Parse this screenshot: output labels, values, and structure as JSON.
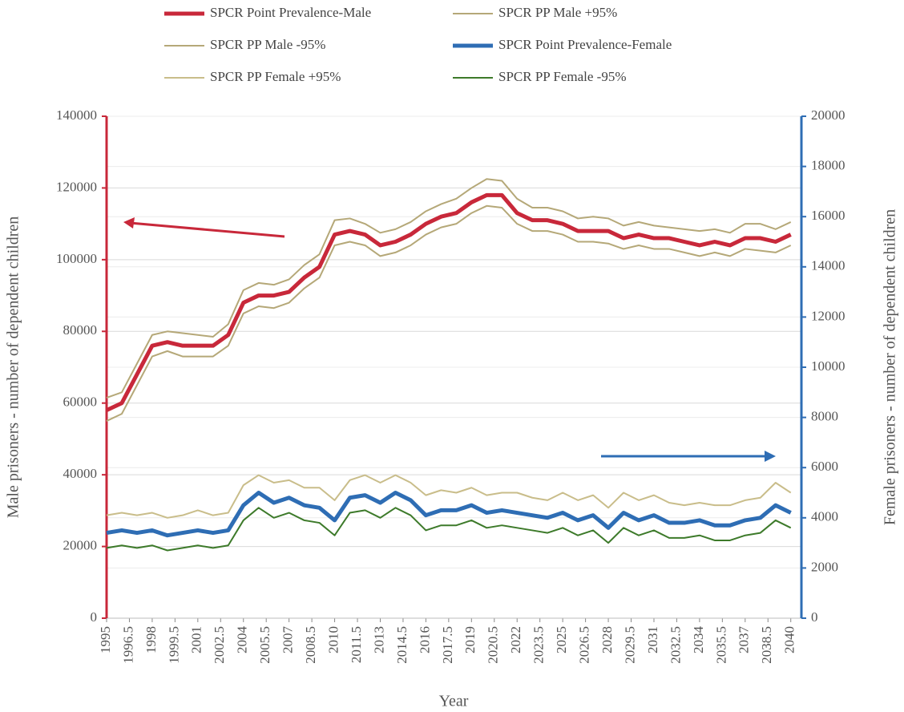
{
  "chart_data": {
    "type": "line",
    "x_label": "Year",
    "y_label": "Male prisoners - number of dependent children",
    "y2_label": "Female prisoners - number of dependent children",
    "x": [
      1995,
      1996,
      1997,
      1998,
      1999,
      2000,
      2001,
      2002,
      2003,
      2004,
      2005,
      2006,
      2007,
      2008,
      2009,
      2010,
      2011,
      2012,
      2013,
      2014,
      2015,
      2016,
      2017,
      2018,
      2019,
      2020,
      2021,
      2022,
      2023,
      2024,
      2025,
      2026,
      2027,
      2028,
      2029,
      2030,
      2031,
      2032,
      2033,
      2034,
      2035,
      2036,
      2037,
      2038,
      2039,
      2040
    ],
    "xlim": [
      1995,
      2040.7
    ],
    "xticks": [
      1995,
      1996.5,
      1998,
      1999.5,
      2001,
      2002.5,
      2004,
      2005.5,
      2007,
      2008.5,
      2010,
      2011.5,
      2013,
      2014.5,
      2016,
      2017.5,
      2019,
      2020.5,
      2022,
      2023.5,
      2025,
      2026.5,
      2028,
      2029.5,
      2031,
      2032.5,
      2034,
      2035.5,
      2037,
      2038.5,
      2040
    ],
    "ylim": [
      0,
      140000
    ],
    "yticks": [
      0,
      20000,
      40000,
      60000,
      80000,
      100000,
      120000,
      140000
    ],
    "y2lim": [
      0,
      20000
    ],
    "y2ticks": [
      0,
      2000,
      4000,
      6000,
      8000,
      10000,
      12000,
      14000,
      16000,
      18000,
      20000
    ],
    "grid": true,
    "y_axis_color": "#c8283a",
    "y2_axis_color": "#2e6db4",
    "series": [
      {
        "name": "SPCR Point Prevalence-Male",
        "color": "#c8283a",
        "line_width": 5,
        "values": [
          58000,
          60000,
          68000,
          76000,
          77000,
          76000,
          76000,
          76000,
          79000,
          88000,
          90000,
          90000,
          91000,
          95000,
          98000,
          107000,
          108000,
          107000,
          104000,
          105000,
          107000,
          110000,
          112000,
          113000,
          116000,
          118000,
          118000,
          113000,
          111000,
          111000,
          110000,
          108000,
          108000,
          108000,
          106000,
          107000,
          106000,
          106000,
          105000,
          104000,
          105000,
          104000,
          106000,
          106000,
          105000,
          107000
        ]
      },
      {
        "name": "SPCR PP Male +95%",
        "color": "#b5a878",
        "line_width": 2,
        "values": [
          61500,
          63000,
          71000,
          79000,
          80000,
          79500,
          79000,
          78500,
          82000,
          91500,
          93500,
          93000,
          94500,
          98500,
          101500,
          111000,
          111500,
          110000,
          107500,
          108500,
          110500,
          113500,
          115500,
          117000,
          120000,
          122500,
          122000,
          117000,
          114500,
          114500,
          113500,
          111500,
          112000,
          111500,
          109500,
          110500,
          109500,
          109000,
          108500,
          108000,
          108500,
          107500,
          110000,
          110000,
          108500,
          110500
        ]
      },
      {
        "name": "SPCR PP Male -95%",
        "color": "#b5a878",
        "line_width": 2,
        "values": [
          55000,
          57000,
          65000,
          73000,
          74500,
          73000,
          73000,
          73000,
          76000,
          85000,
          87000,
          86500,
          88000,
          92000,
          95000,
          104000,
          105000,
          104000,
          101000,
          102000,
          104000,
          107000,
          109000,
          110000,
          113000,
          115000,
          114500,
          110000,
          108000,
          108000,
          107000,
          105000,
          105000,
          104500,
          103000,
          104000,
          103000,
          103000,
          102000,
          101000,
          102000,
          101000,
          103000,
          102500,
          102000,
          104000
        ]
      },
      {
        "name": "SPCR Point Prevalence-Female",
        "color": "#2e6db4",
        "line_width": 5,
        "axis": "y2",
        "values": [
          3400,
          3500,
          3400,
          3500,
          3300,
          3400,
          3500,
          3400,
          3500,
          4500,
          5000,
          4600,
          4800,
          4500,
          4400,
          3900,
          4800,
          4900,
          4600,
          5000,
          4700,
          4100,
          4300,
          4300,
          4500,
          4200,
          4300,
          4200,
          4100,
          4000,
          4200,
          3900,
          4100,
          3600,
          4200,
          3900,
          4100,
          3800,
          3800,
          3900,
          3700,
          3700,
          3900,
          4000,
          4500,
          4200
        ]
      },
      {
        "name": "SPCR PP Female +95%",
        "color": "#c9bd8a",
        "line_width": 2,
        "axis": "y2",
        "values": [
          4100,
          4200,
          4100,
          4200,
          4000,
          4100,
          4300,
          4100,
          4200,
          5300,
          5700,
          5400,
          5500,
          5200,
          5200,
          4700,
          5500,
          5700,
          5400,
          5700,
          5400,
          4900,
          5100,
          5000,
          5200,
          4900,
          5000,
          5000,
          4800,
          4700,
          5000,
          4700,
          4900,
          4400,
          5000,
          4700,
          4900,
          4600,
          4500,
          4600,
          4500,
          4500,
          4700,
          4800,
          5400,
          5000
        ]
      },
      {
        "name": "SPCR PP Female -95%",
        "color": "#3d7a2a",
        "line_width": 2,
        "axis": "y2",
        "values": [
          2800,
          2900,
          2800,
          2900,
          2700,
          2800,
          2900,
          2800,
          2900,
          3900,
          4400,
          4000,
          4200,
          3900,
          3800,
          3300,
          4200,
          4300,
          4000,
          4400,
          4100,
          3500,
          3700,
          3700,
          3900,
          3600,
          3700,
          3600,
          3500,
          3400,
          3600,
          3300,
          3500,
          3000,
          3600,
          3300,
          3500,
          3200,
          3200,
          3300,
          3100,
          3100,
          3300,
          3400,
          3900,
          3600
        ]
      }
    ]
  }
}
